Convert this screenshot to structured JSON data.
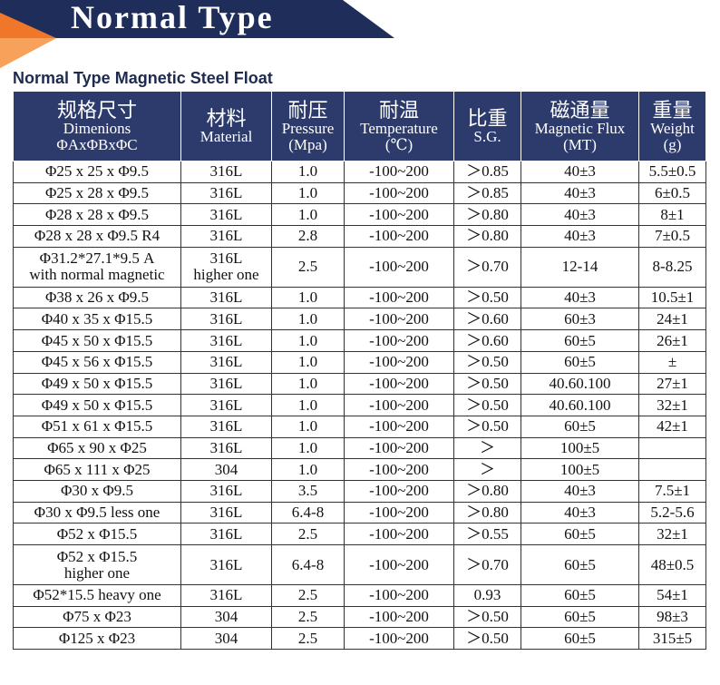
{
  "header": {
    "title": "Normal Type",
    "subtitle": "Normal Type Magnetic Steel Float"
  },
  "table": {
    "columns": [
      [
        "规格尺寸",
        "Dimenions",
        "ΦAxΦBxΦC"
      ],
      [
        "材料",
        "Material"
      ],
      [
        "耐压",
        "Pressure",
        "(Mpa)"
      ],
      [
        "耐温",
        "Temperature",
        "(℃)"
      ],
      [
        "比重",
        "S.G."
      ],
      [
        "磁通量",
        "Magnetic Flux",
        "(MT)"
      ],
      [
        "重量",
        "Weight",
        "(g)"
      ]
    ],
    "rows": [
      [
        "Φ25 x 25 x Φ9.5",
        "316L",
        "1.0",
        "-100~200",
        "＞0.85",
        "40±3",
        "5.5±0.5"
      ],
      [
        "Φ25 x 28 x Φ9.5",
        "316L",
        "1.0",
        "-100~200",
        "＞0.85",
        "40±3",
        "6±0.5"
      ],
      [
        "Φ28 x 28 x Φ9.5",
        "316L",
        "1.0",
        "-100~200",
        "＞0.80",
        "40±3",
        "8±1"
      ],
      [
        "Φ28 x 28 x Φ9.5 R4",
        "316L",
        "2.8",
        "-100~200",
        "＞0.80",
        "40±3",
        "7±0.5"
      ],
      [
        [
          "Φ31.2*27.1*9.5 A",
          "with normal magnetic"
        ],
        [
          "316L",
          "higher one"
        ],
        "2.5",
        "-100~200",
        "＞0.70",
        "12-14",
        "8-8.25"
      ],
      [
        "Φ38 x 26 x Φ9.5",
        "316L",
        "1.0",
        "-100~200",
        "＞0.50",
        "40±3",
        "10.5±1"
      ],
      [
        "Φ40 x 35 x Φ15.5",
        "316L",
        "1.0",
        "-100~200",
        "＞0.60",
        "60±3",
        "24±1"
      ],
      [
        "Φ45 x 50 x Φ15.5",
        "316L",
        "1.0",
        "-100~200",
        "＞0.60",
        "60±5",
        "26±1"
      ],
      [
        "Φ45 x 56 x Φ15.5",
        "316L",
        "1.0",
        "-100~200",
        "＞0.50",
        "60±5",
        "±"
      ],
      [
        "Φ49 x 50 x Φ15.5",
        "316L",
        "1.0",
        "-100~200",
        "＞0.50",
        "40.60.100",
        "27±1"
      ],
      [
        "Φ49 x 50 x Φ15.5",
        "316L",
        "1.0",
        "-100~200",
        "＞0.50",
        "40.60.100",
        "32±1"
      ],
      [
        "Φ51 x 61 x Φ15.5",
        "316L",
        "1.0",
        "-100~200",
        "＞0.50",
        "60±5",
        "42±1"
      ],
      [
        "Φ65 x 90 x Φ25",
        "316L",
        "1.0",
        "-100~200",
        "＞",
        "100±5",
        null
      ],
      [
        "Φ65 x 111 x Φ25",
        "304",
        "1.0",
        "-100~200",
        "＞",
        "100±5",
        null
      ],
      [
        "Φ30 x Φ9.5",
        "316L",
        "3.5",
        "-100~200",
        "＞0.80",
        "40±3",
        "7.5±1"
      ],
      [
        "Φ30 x Φ9.5 less one",
        "316L",
        "6.4-8",
        "-100~200",
        "＞0.80",
        "40±3",
        "5.2-5.6"
      ],
      [
        "Φ52 x Φ15.5",
        "316L",
        "2.5",
        "-100~200",
        "＞0.55",
        "60±5",
        "32±1"
      ],
      [
        [
          "Φ52 x Φ15.5",
          "higher one"
        ],
        "316L",
        "6.4-8",
        "-100~200",
        "＞0.70",
        "60±5",
        "48±0.5"
      ],
      [
        "Φ52*15.5 heavy one",
        "316L",
        "2.5",
        "-100~200",
        "0.93",
        "60±5",
        "54±1"
      ],
      [
        "Φ75 x Φ23",
        "304",
        "2.5",
        "-100~200",
        "＞0.50",
        "60±5",
        "98±3"
      ],
      [
        "Φ125 x Φ23",
        "304",
        "2.5",
        "-100~200",
        "＞0.50",
        "60±5",
        "315±5"
      ]
    ]
  }
}
